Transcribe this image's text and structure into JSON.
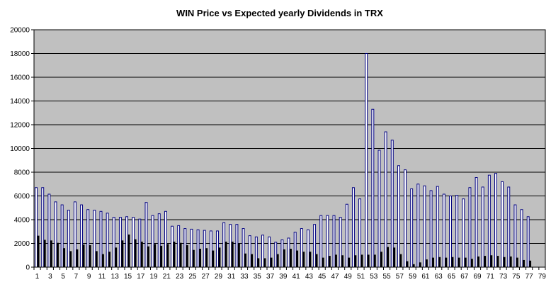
{
  "chart_data": {
    "type": "bar",
    "title": "WIN Price vs Expected yearly Dividends in TRX",
    "xlabel": "",
    "ylabel": "",
    "ylim": [
      0,
      20000
    ],
    "y_ticks": [
      0,
      2000,
      4000,
      6000,
      8000,
      10000,
      12000,
      14000,
      16000,
      18000,
      20000
    ],
    "x_tick_labels": [
      "1",
      "3",
      "5",
      "7",
      "9",
      "11",
      "13",
      "15",
      "17",
      "19",
      "21",
      "23",
      "25",
      "27",
      "29",
      "31",
      "33",
      "35",
      "37",
      "39",
      "41",
      "43",
      "45",
      "47",
      "49",
      "51",
      "53",
      "55",
      "57",
      "59",
      "61",
      "63",
      "65",
      "67",
      "69",
      "71",
      "73",
      "75",
      "77",
      "79"
    ],
    "categories": [
      "1",
      "2",
      "3",
      "4",
      "5",
      "6",
      "7",
      "8",
      "9",
      "10",
      "11",
      "12",
      "13",
      "14",
      "15",
      "16",
      "17",
      "18",
      "19",
      "20",
      "21",
      "22",
      "23",
      "24",
      "25",
      "26",
      "27",
      "28",
      "29",
      "30",
      "31",
      "32",
      "33",
      "34",
      "35",
      "36",
      "37",
      "38",
      "39",
      "40",
      "41",
      "42",
      "43",
      "44",
      "45",
      "46",
      "47",
      "48",
      "49",
      "50",
      "51",
      "52",
      "53",
      "54",
      "55",
      "56",
      "57",
      "58",
      "59",
      "60",
      "61",
      "62",
      "63",
      "64",
      "65",
      "66",
      "67",
      "68",
      "69",
      "70",
      "71",
      "72",
      "73",
      "74",
      "75",
      "76",
      "77",
      "78",
      "79"
    ],
    "series": [
      {
        "values": [
          6700,
          6700,
          6150,
          5500,
          5250,
          4800,
          5500,
          5250,
          4850,
          4800,
          4700,
          4550,
          4200,
          4200,
          4250,
          4200,
          4050,
          5450,
          4350,
          4500,
          4700,
          3450,
          3500,
          3250,
          3200,
          3150,
          3100,
          3050,
          3050,
          3750,
          3600,
          3600,
          3250,
          2650,
          2550,
          2700,
          2550,
          2100,
          2300,
          2450,
          2950,
          3250,
          3150,
          3600,
          4350,
          4350,
          4350,
          4200,
          5300,
          6700,
          5750,
          18000,
          13300,
          9850,
          11400,
          10700,
          8550,
          8200,
          6600,
          7000,
          6850,
          6450,
          6800,
          6150,
          6000,
          6050,
          5750,
          6700,
          7550,
          6750,
          7750,
          7900,
          7200,
          6750,
          5250,
          4850,
          4250,
          null,
          null
        ]
      },
      {
        "values": [
          2650,
          2300,
          2250,
          2050,
          1600,
          1350,
          1500,
          1900,
          1850,
          1350,
          1100,
          1300,
          1650,
          2250,
          2750,
          2350,
          2150,
          1750,
          1950,
          1800,
          1950,
          2150,
          2050,
          1850,
          1450,
          1550,
          1600,
          1400,
          1650,
          2150,
          2150,
          2000,
          1150,
          1100,
          750,
          750,
          800,
          1100,
          1500,
          1550,
          1400,
          1300,
          1300,
          1100,
          800,
          950,
          1050,
          1000,
          800,
          1000,
          1050,
          1050,
          1050,
          1300,
          1700,
          1650,
          1100,
          500,
          250,
          400,
          650,
          800,
          850,
          800,
          850,
          800,
          800,
          700,
          900,
          950,
          1000,
          950,
          850,
          900,
          800,
          600,
          550,
          null,
          null
        ]
      }
    ],
    "colors": {
      "plot_background": "#c0c0c0",
      "series_1_fill": "#ffffff",
      "series_1_stroke": "#000080",
      "series_2_fill": "#000000",
      "axis": "#000000",
      "gridline": "#000000"
    },
    "grid": true,
    "legend": "none"
  }
}
